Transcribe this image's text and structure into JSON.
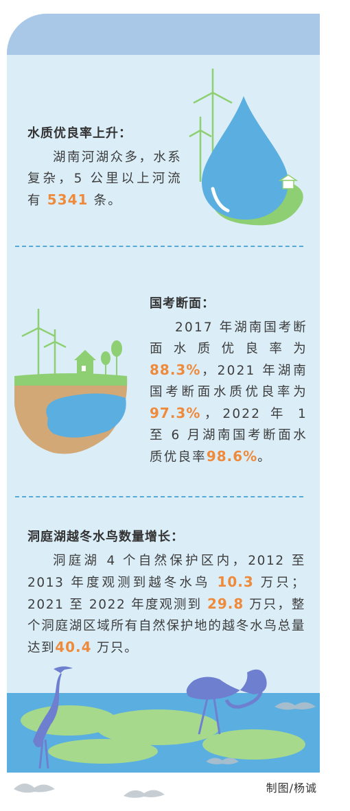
{
  "section1": {
    "heading": "水质优良率上升：",
    "text_a": "湖南河湖众多，水系复杂，5 公里以上河流有 ",
    "value": "5341",
    "text_b": " 条。"
  },
  "section2": {
    "heading": "国考断面：",
    "text_a": "2017 年湖南国考断面水质优良率为 ",
    "value_2017": "88.3%",
    "text_b": "，2021 年湖南国考断面水质优良率为 ",
    "value_2021": "97.3%",
    "text_c": "，2022 年 1 至 6 月湖南国考断面水质优良率",
    "value_2022": "98.6%",
    "text_d": "。"
  },
  "section3": {
    "heading": "洞庭湖越冬水鸟数量增长：",
    "text_a": "洞庭湖 4 个自然保护区内，2012 至 2013 年度观测到越冬水鸟 ",
    "value_2013": "10.3",
    "text_b": " 万只；2021 至 2022 年度观测到 ",
    "value_2022": "29.8",
    "text_c": " 万只，整个洞庭湖区域所有自然保护地的越冬水鸟总量达到",
    "value_total": "40.4",
    "text_d": " 万只。"
  },
  "credit": "制图/杨诚",
  "colors": {
    "panel": "#dbeef8",
    "panel_top": "#a9c7e6",
    "highlight": "#ee8a3c",
    "water": "#5aaee0",
    "grass": "#8fcf73",
    "soil": "#d2a877",
    "heron": "#6f7fcf",
    "divider": "#55a9d6"
  },
  "icons": [
    "wind-turbine-icon",
    "water-drop-icon",
    "house-icon",
    "tree-icon",
    "heron-icon",
    "flamingo-icon",
    "flying-bird-icon"
  ]
}
